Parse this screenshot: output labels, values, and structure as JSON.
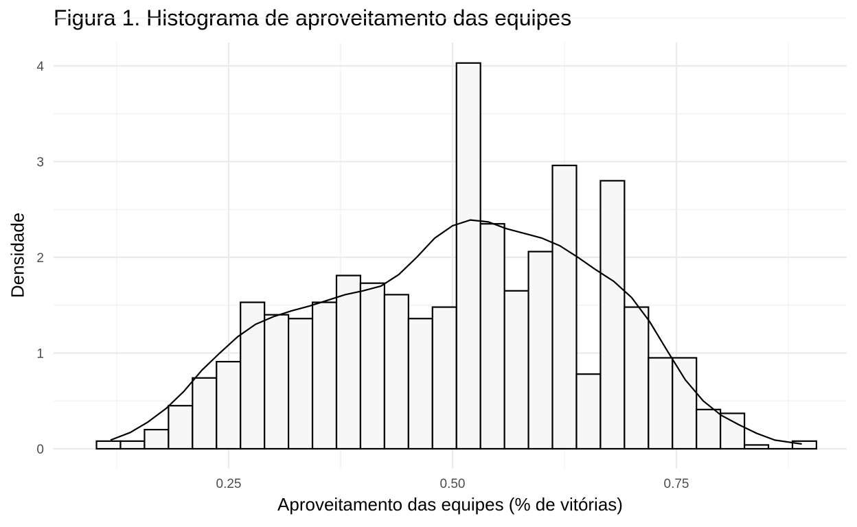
{
  "chart_data": {
    "type": "bar",
    "subtype": "histogram with density curve",
    "title": "Figura 1. Histograma de aproveitamento das equipes",
    "xlabel": "Aproveitamento das equipes (% de vitórias)",
    "ylabel": "Densidade",
    "xlim": [
      0.07,
      0.92
    ],
    "ylim": [
      0,
      4.2
    ],
    "x_ticks": [
      0.25,
      0.5,
      0.75
    ],
    "x_tick_labels": [
      "0.25",
      "0.50",
      "0.75"
    ],
    "y_ticks": [
      0,
      1,
      2,
      3,
      4
    ],
    "y_tick_labels": [
      "0",
      "1",
      "2",
      "3",
      "4"
    ],
    "grid": true,
    "bar_fill": "#f7f7f7",
    "bar_stroke": "#000000",
    "bin_width": 0.0268,
    "bins": [
      {
        "x0": 0.1024,
        "x1": 0.1292,
        "density": 0.08
      },
      {
        "x0": 0.1292,
        "x1": 0.156,
        "density": 0.08
      },
      {
        "x0": 0.156,
        "x1": 0.1828,
        "density": 0.2
      },
      {
        "x0": 0.1828,
        "x1": 0.2096,
        "density": 0.45
      },
      {
        "x0": 0.2096,
        "x1": 0.2364,
        "density": 0.74
      },
      {
        "x0": 0.2364,
        "x1": 0.2632,
        "density": 0.91
      },
      {
        "x0": 0.2632,
        "x1": 0.29,
        "density": 1.53
      },
      {
        "x0": 0.29,
        "x1": 0.3168,
        "density": 1.4
      },
      {
        "x0": 0.3168,
        "x1": 0.3436,
        "density": 1.36
      },
      {
        "x0": 0.3436,
        "x1": 0.3704,
        "density": 1.53
      },
      {
        "x0": 0.3704,
        "x1": 0.3972,
        "density": 1.81
      },
      {
        "x0": 0.3972,
        "x1": 0.424,
        "density": 1.73
      },
      {
        "x0": 0.424,
        "x1": 0.4508,
        "density": 1.61
      },
      {
        "x0": 0.4508,
        "x1": 0.4776,
        "density": 1.36
      },
      {
        "x0": 0.4776,
        "x1": 0.5044,
        "density": 1.48
      },
      {
        "x0": 0.5044,
        "x1": 0.5312,
        "density": 4.03
      },
      {
        "x0": 0.5312,
        "x1": 0.558,
        "density": 2.35
      },
      {
        "x0": 0.558,
        "x1": 0.5848,
        "density": 1.65
      },
      {
        "x0": 0.5848,
        "x1": 0.6116,
        "density": 2.06
      },
      {
        "x0": 0.6116,
        "x1": 0.6384,
        "density": 2.96
      },
      {
        "x0": 0.6384,
        "x1": 0.6652,
        "density": 0.78
      },
      {
        "x0": 0.6652,
        "x1": 0.692,
        "density": 2.8
      },
      {
        "x0": 0.692,
        "x1": 0.7188,
        "density": 1.48
      },
      {
        "x0": 0.7188,
        "x1": 0.7456,
        "density": 0.95
      },
      {
        "x0": 0.7456,
        "x1": 0.7724,
        "density": 0.95
      },
      {
        "x0": 0.7724,
        "x1": 0.7992,
        "density": 0.41
      },
      {
        "x0": 0.7992,
        "x1": 0.826,
        "density": 0.37
      },
      {
        "x0": 0.826,
        "x1": 0.8528,
        "density": 0.04
      },
      {
        "x0": 0.8528,
        "x1": 0.8796,
        "density": 0.0
      },
      {
        "x0": 0.8796,
        "x1": 0.9064,
        "density": 0.08
      }
    ],
    "density_curve": {
      "x": [
        0.118,
        0.14,
        0.16,
        0.18,
        0.2,
        0.22,
        0.24,
        0.26,
        0.28,
        0.3,
        0.32,
        0.34,
        0.36,
        0.38,
        0.4,
        0.42,
        0.44,
        0.46,
        0.48,
        0.5,
        0.52,
        0.54,
        0.56,
        0.58,
        0.6,
        0.62,
        0.64,
        0.66,
        0.68,
        0.7,
        0.72,
        0.74,
        0.76,
        0.78,
        0.8,
        0.82,
        0.84,
        0.86,
        0.89
      ],
      "y": [
        0.09,
        0.17,
        0.28,
        0.42,
        0.6,
        0.82,
        1.0,
        1.17,
        1.3,
        1.38,
        1.44,
        1.49,
        1.55,
        1.61,
        1.65,
        1.7,
        1.82,
        2.0,
        2.2,
        2.33,
        2.39,
        2.37,
        2.3,
        2.25,
        2.2,
        2.12,
        2.0,
        1.87,
        1.75,
        1.58,
        1.33,
        1.02,
        0.72,
        0.5,
        0.35,
        0.25,
        0.16,
        0.09,
        0.05
      ]
    }
  }
}
